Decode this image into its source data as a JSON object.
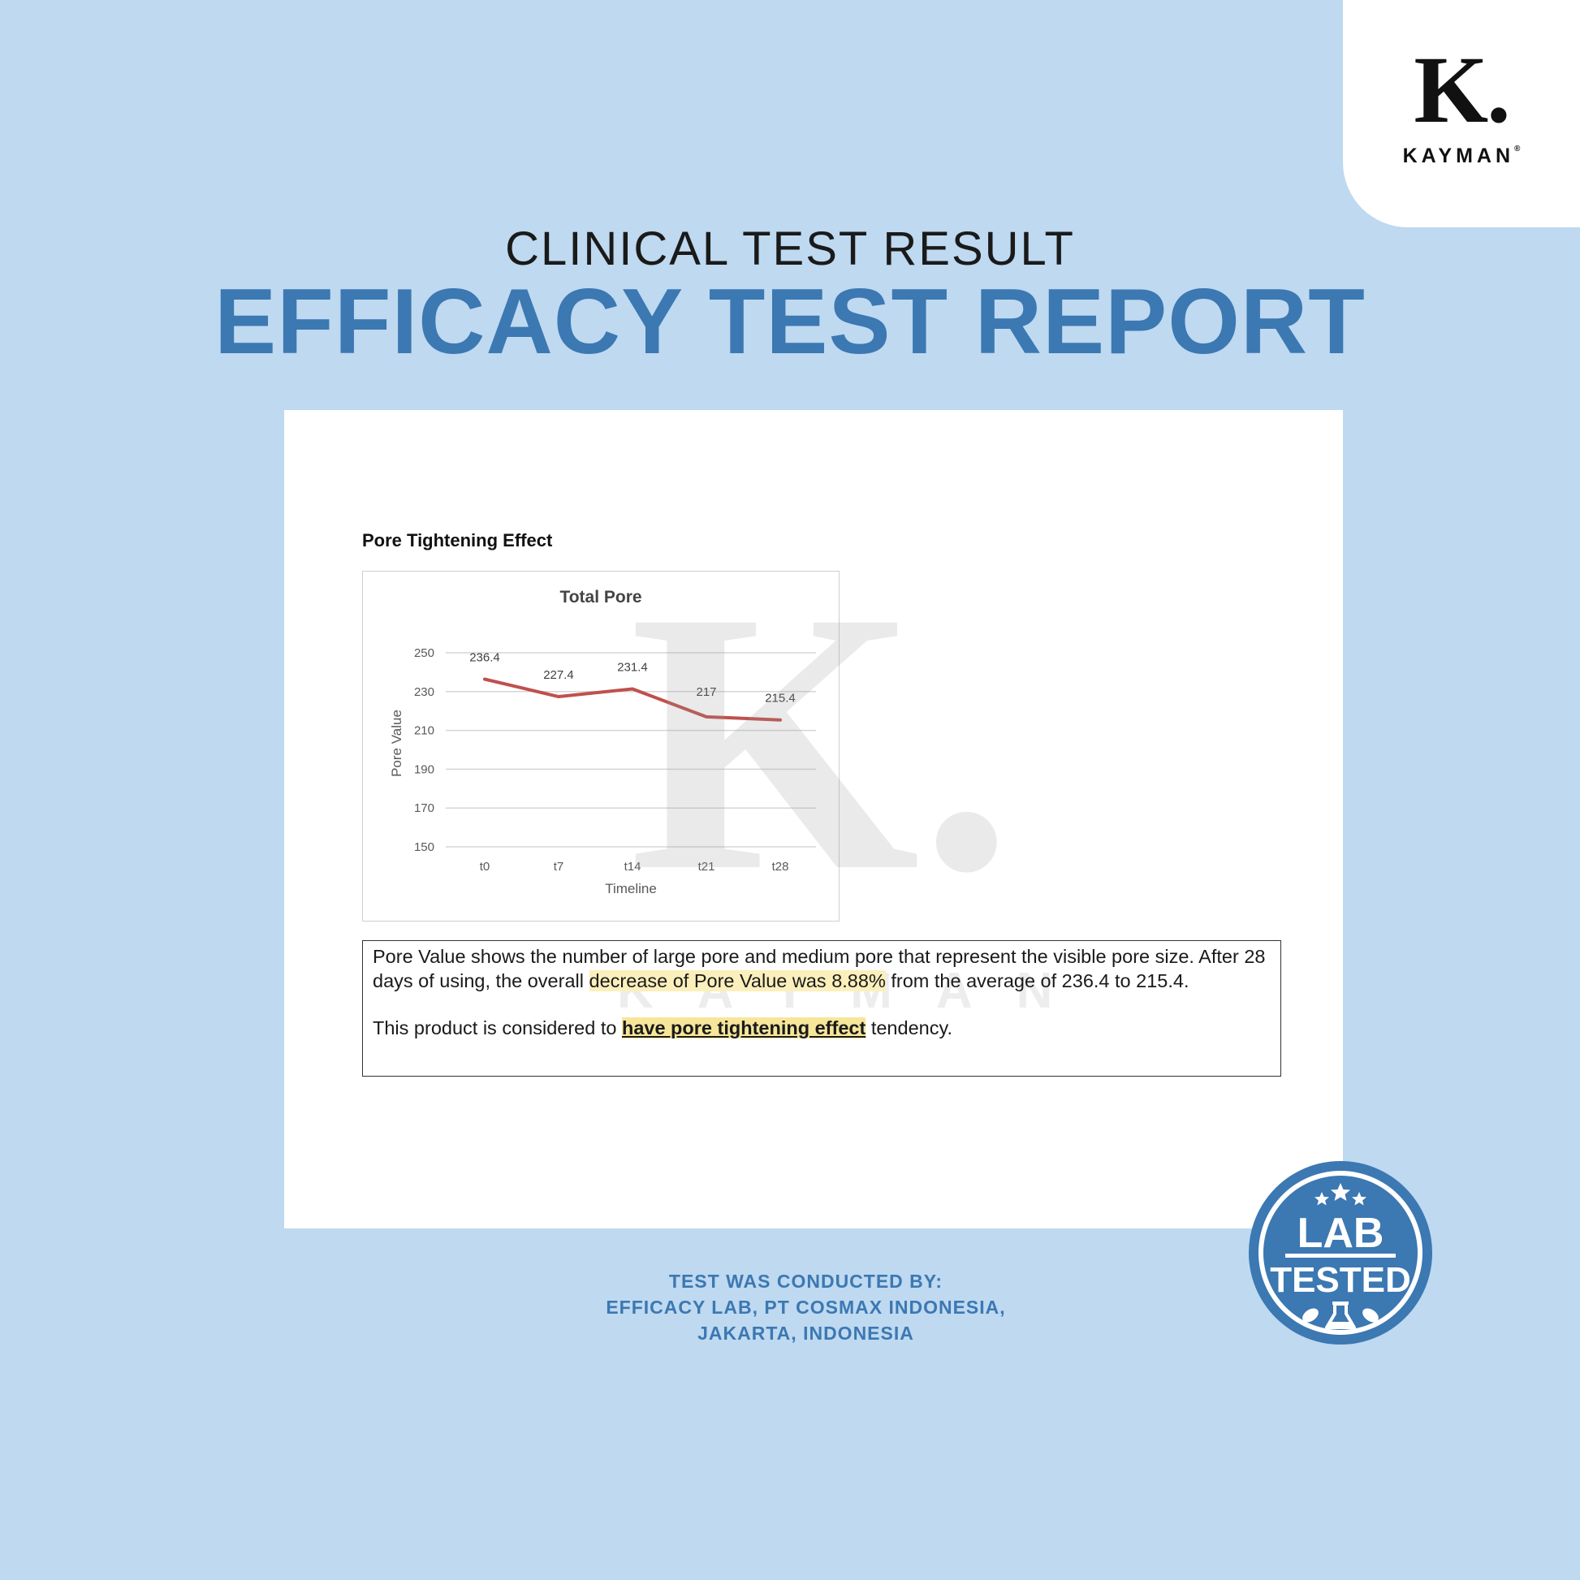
{
  "brand": {
    "logo_letter": "K.",
    "logo_name": "KAYMAN",
    "logo_mark": "®"
  },
  "header": {
    "subtitle": "CLINICAL TEST RESULT",
    "title": "EFFICACY TEST REPORT"
  },
  "report": {
    "section_title": "Pore Tightening Effect",
    "note_part1": "Pore Value shows the number of large pore and medium pore that represent the visible pore size. After 28 days of using, the overall ",
    "note_highlight": "decrease of Pore Value was 8.88%",
    "note_part2": " from the average of 236.4 to 215.4.",
    "conclusion_part1": "This product is considered to ",
    "conclusion_highlight": "have pore tightening effect",
    "conclusion_part2": " tendency."
  },
  "watermark": {
    "letter": "K.",
    "word": "KAYMAN"
  },
  "chart_data": {
    "type": "line",
    "title": "Total Pore",
    "xlabel": "Timeline",
    "ylabel": "Pore Value",
    "categories": [
      "t0",
      "t7",
      "t14",
      "t21",
      "t28"
    ],
    "values": [
      236.4,
      227.4,
      231.4,
      217,
      215.4
    ],
    "data_labels": [
      "236.4",
      "227.4",
      "231.4",
      "217",
      "215.4"
    ],
    "ylim": [
      150,
      250
    ],
    "yticks": [
      150,
      170,
      190,
      210,
      230,
      250
    ],
    "grid": true,
    "line_color": "#c0504d"
  },
  "credit": {
    "line1": "TEST WAS CONDUCTED BY:",
    "line2": "EFFICACY LAB, PT COSMAX INDONESIA,",
    "line3": "JAKARTA, INDONESIA"
  },
  "badge": {
    "line1": "LAB",
    "line2": "TESTED",
    "color": "#3c78b2"
  }
}
